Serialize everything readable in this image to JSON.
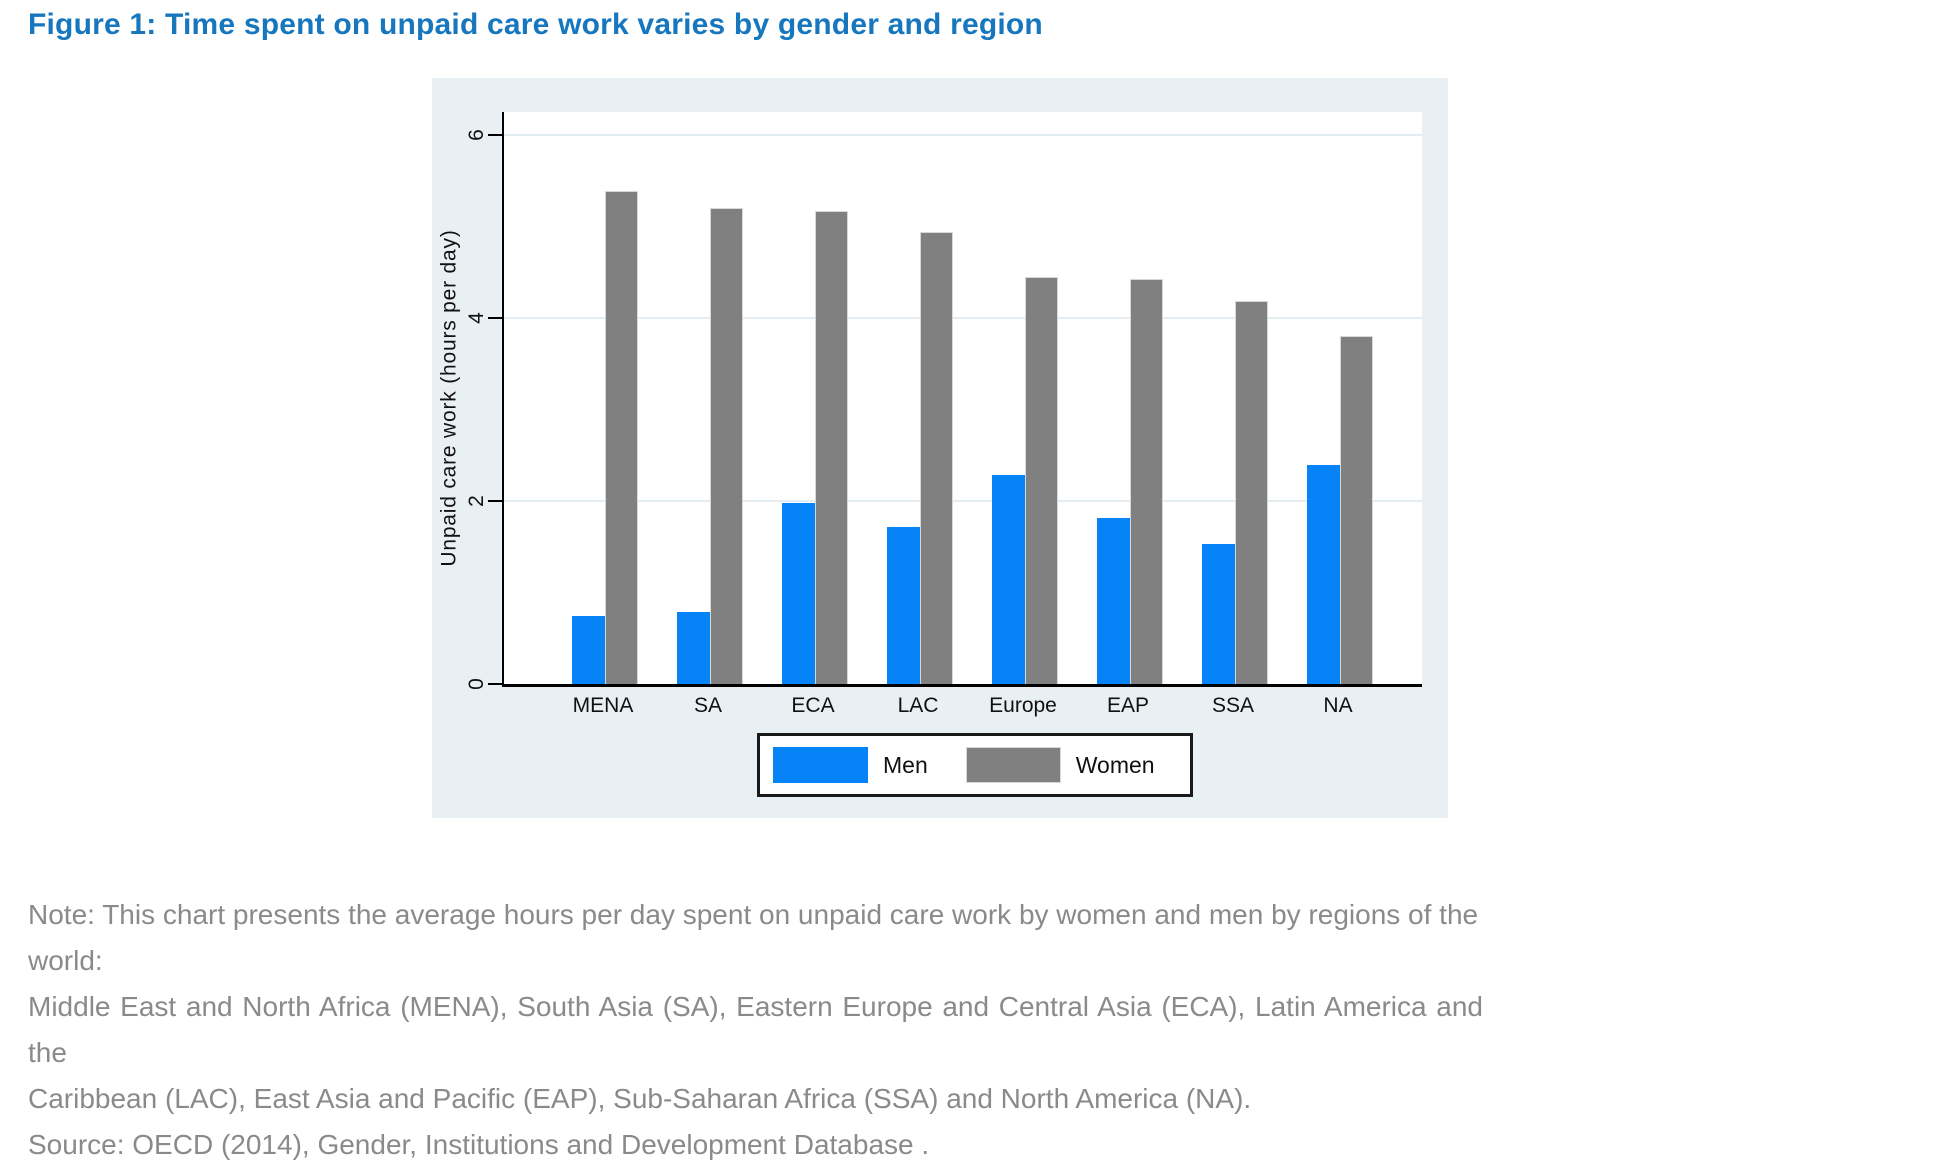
{
  "figure": {
    "title": "Figure 1: Time spent on unpaid care work varies by gender and region"
  },
  "colors": {
    "title": "#1777BE",
    "note": "#8A8A8A",
    "panel_bg": "#E9F0F4",
    "grid": "#E3EDF2",
    "axis": "#000000",
    "men": "#0583F7",
    "women": "#808080"
  },
  "chart_data": {
    "type": "bar",
    "categories": [
      "MENA",
      "SA",
      "ECA",
      "LAC",
      "Europe",
      "EAP",
      "SSA",
      "NA"
    ],
    "series": [
      {
        "name": "Men",
        "color": "#0583F7",
        "values": [
          0.74,
          0.79,
          1.98,
          1.72,
          2.28,
          1.81,
          1.53,
          2.39
        ]
      },
      {
        "name": "Women",
        "color": "#808080",
        "values": [
          5.39,
          5.2,
          5.17,
          4.94,
          4.45,
          4.43,
          4.18,
          3.8
        ]
      }
    ],
    "title": "",
    "xlabel": "",
    "ylabel": "Unpaid care work (hours per day)",
    "ylim": [
      0,
      6.25
    ],
    "yticks": [
      0,
      2,
      4,
      6
    ],
    "grid": true,
    "legend_position": "bottom-outside-plot"
  },
  "legend": {
    "items": [
      {
        "label": "Men",
        "color": "#0583F7"
      },
      {
        "label": "Women",
        "color": "#808080"
      }
    ]
  },
  "note": {
    "lines": [
      "Note: This chart presents the average hours per day spent on unpaid care work by women and men by regions of the world:",
      "Middle East and North Africa (MENA), South Asia (SA), Eastern Europe and Central Asia (ECA), Latin America and the",
      "Caribbean (LAC), East Asia and Pacific (EAP), Sub-Saharan Africa (SSA) and North America (NA).",
      "Source: OECD (2014), Gender, Institutions and Development Database ."
    ]
  }
}
